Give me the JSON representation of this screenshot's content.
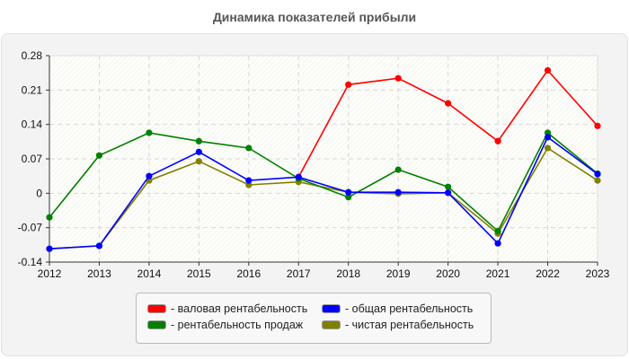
{
  "chart_data": {
    "type": "line",
    "title": "Динамика показателей прибыли",
    "xlabel": "",
    "ylabel": "",
    "categories": [
      "2012",
      "2013",
      "2014",
      "2015",
      "2016",
      "2017",
      "2018",
      "2019",
      "2020",
      "2021",
      "2022",
      "2023"
    ],
    "y_ticks": [
      "0.28",
      "0.21",
      "0.14",
      "0.07",
      "0",
      "-0.07",
      "-0.14"
    ],
    "ylim": [
      -0.14,
      0.28
    ],
    "grid": true,
    "legend_position": "bottom",
    "series": [
      {
        "name": "валовая рентабельность",
        "color": "#ff0000",
        "values": [
          null,
          null,
          null,
          null,
          null,
          0.033,
          0.221,
          0.234,
          0.183,
          0.106,
          0.25,
          0.137
        ]
      },
      {
        "name": "общая рентабельность",
        "color": "#0000ff",
        "values": [
          -0.113,
          -0.107,
          0.035,
          0.084,
          0.026,
          0.033,
          0.002,
          0.002,
          0.001,
          -0.102,
          0.114,
          0.039
        ]
      },
      {
        "name": "рентабельность продаж",
        "color": "#008000",
        "values": [
          -0.049,
          0.077,
          0.123,
          0.106,
          0.092,
          0.03,
          -0.008,
          0.048,
          0.013,
          -0.077,
          0.123,
          0.04
        ]
      },
      {
        "name": "чистая рентабельность",
        "color": "#808000",
        "values": [
          -0.113,
          -0.107,
          0.026,
          0.065,
          0.017,
          0.023,
          0.002,
          -0.001,
          0.001,
          -0.082,
          0.092,
          0.026
        ]
      }
    ]
  },
  "legend": {
    "items": [
      {
        "label": "- валовая рентабельность",
        "color": "#ff0000"
      },
      {
        "label": "- общая рентабельность",
        "color": "#0000ff"
      },
      {
        "label": "- рентабельность продаж",
        "color": "#008000"
      },
      {
        "label": "- чистая рентабельность",
        "color": "#808000"
      }
    ]
  }
}
